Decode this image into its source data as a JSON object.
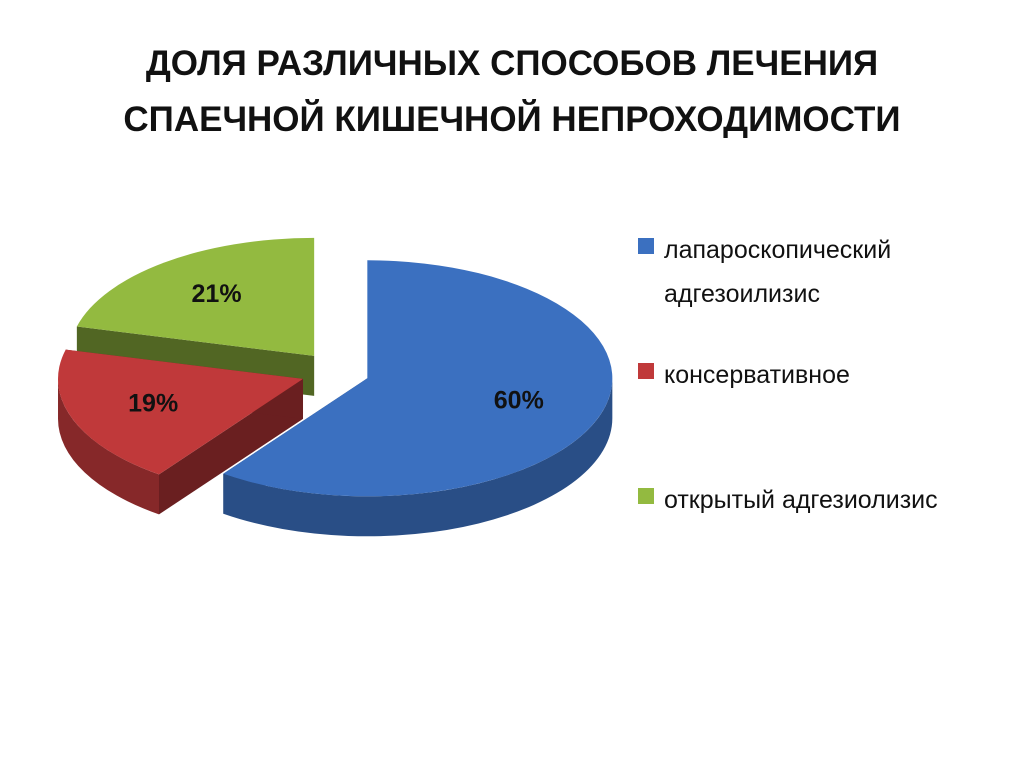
{
  "chart_data": {
    "type": "pie",
    "title": "ДОЛЯ РАЗЛИЧНЫХ СПОСОБОВ ЛЕЧЕНИЯ СПАЕЧНОЙ КИШЕЧНОЙ НЕПРОХОДИМОСТИ",
    "categories": [
      "лапароскопический адгезоилизис",
      "консервативное",
      "открытый адгезиолизис"
    ],
    "values": [
      60,
      19,
      21
    ],
    "value_labels": [
      "60%",
      "19%",
      "21%"
    ],
    "colors": [
      "#3b70c0",
      "#c0393a",
      "#93ba40"
    ],
    "legend": "right"
  }
}
